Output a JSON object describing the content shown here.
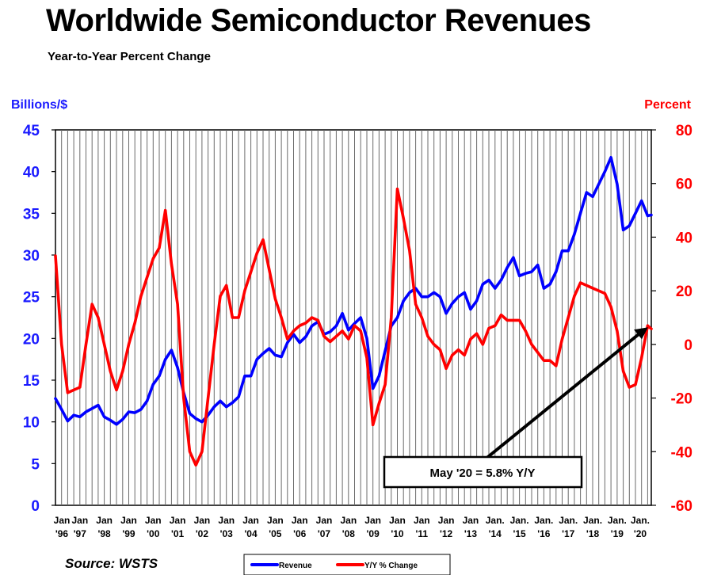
{
  "chart_data": {
    "type": "line",
    "title": "Worldwide Semiconductor Revenues",
    "subtitle": "Year-to-Year Percent Change",
    "y_left_label": "Billions/$",
    "y_right_label": "Percent",
    "source": "Source: WSTS",
    "y_left_range": [
      0,
      45
    ],
    "y_left_ticks": [
      "0",
      "5",
      "10",
      "15",
      "20",
      "25",
      "30",
      "35",
      "40",
      "45"
    ],
    "y_right_range": [
      -60,
      80
    ],
    "y_right_ticks": [
      "-60",
      "-40",
      "-20",
      "0",
      "20",
      "40",
      "60",
      "80"
    ],
    "x_range": [
      1996.0,
      2020.4
    ],
    "x_ticks": [
      {
        "top": "Jan",
        "bottom": "'96",
        "x": 1996
      },
      {
        "top": "Jan",
        "bottom": "'97",
        "x": 1997
      },
      {
        "top": "Jan",
        "bottom": "'98",
        "x": 1998
      },
      {
        "top": "Jan",
        "bottom": "'99",
        "x": 1999
      },
      {
        "top": "Jan",
        "bottom": "'00",
        "x": 2000
      },
      {
        "top": "Jan",
        "bottom": "'01",
        "x": 2001
      },
      {
        "top": "Jan",
        "bottom": "'02",
        "x": 2002
      },
      {
        "top": "Jan",
        "bottom": "'03",
        "x": 2003
      },
      {
        "top": "Jan",
        "bottom": "'04",
        "x": 2004
      },
      {
        "top": "Jan",
        "bottom": "'05",
        "x": 2005
      },
      {
        "top": "Jan",
        "bottom": "'06",
        "x": 2006
      },
      {
        "top": "Jan",
        "bottom": "'07",
        "x": 2007
      },
      {
        "top": "Jan",
        "bottom": "'08",
        "x": 2008
      },
      {
        "top": "Jan",
        "bottom": "'09",
        "x": 2009
      },
      {
        "top": "Jan",
        "bottom": "'10",
        "x": 2010
      },
      {
        "top": "Jan",
        "bottom": "'11",
        "x": 2011
      },
      {
        "top": "Jan",
        "bottom": "'12",
        "x": 2012
      },
      {
        "top": "Jan",
        "bottom": "'13",
        "x": 2013
      },
      {
        "top": "Jan.",
        "bottom": "'14",
        "x": 2014
      },
      {
        "top": "Jan.",
        "bottom": "'15",
        "x": 2015
      },
      {
        "top": "Jan.",
        "bottom": "'16",
        "x": 2016
      },
      {
        "top": "Jan.",
        "bottom": "'17",
        "x": 2017
      },
      {
        "top": "Jan.",
        "bottom": "'18",
        "x": 2018
      },
      {
        "top": "Jan.",
        "bottom": "'19",
        "x": 2019
      },
      {
        "top": "Jan.",
        "bottom": "'20",
        "x": 2020
      }
    ],
    "grid": "vertical",
    "series": [
      {
        "name": "Revenue",
        "axis": "left",
        "color": "#0000ff",
        "points": [
          [
            1996.0,
            12.8
          ],
          [
            1996.25,
            11.5
          ],
          [
            1996.5,
            10.1
          ],
          [
            1996.75,
            10.8
          ],
          [
            1997.0,
            10.6
          ],
          [
            1997.25,
            11.2
          ],
          [
            1997.5,
            11.6
          ],
          [
            1997.75,
            12.0
          ],
          [
            1998.0,
            10.6
          ],
          [
            1998.25,
            10.2
          ],
          [
            1998.5,
            9.7
          ],
          [
            1998.75,
            10.3
          ],
          [
            1999.0,
            11.2
          ],
          [
            1999.25,
            11.1
          ],
          [
            1999.5,
            11.5
          ],
          [
            1999.75,
            12.5
          ],
          [
            2000.0,
            14.5
          ],
          [
            2000.25,
            15.5
          ],
          [
            2000.5,
            17.5
          ],
          [
            2000.75,
            18.6
          ],
          [
            2001.0,
            16.5
          ],
          [
            2001.25,
            13.5
          ],
          [
            2001.5,
            11.0
          ],
          [
            2001.75,
            10.4
          ],
          [
            2002.0,
            10.0
          ],
          [
            2002.25,
            10.8
          ],
          [
            2002.5,
            11.8
          ],
          [
            2002.75,
            12.5
          ],
          [
            2003.0,
            11.8
          ],
          [
            2003.25,
            12.3
          ],
          [
            2003.5,
            13.0
          ],
          [
            2003.75,
            15.5
          ],
          [
            2004.0,
            15.5
          ],
          [
            2004.25,
            17.5
          ],
          [
            2004.5,
            18.2
          ],
          [
            2004.75,
            18.8
          ],
          [
            2005.0,
            18.0
          ],
          [
            2005.25,
            17.8
          ],
          [
            2005.5,
            19.5
          ],
          [
            2005.75,
            20.5
          ],
          [
            2006.0,
            19.5
          ],
          [
            2006.25,
            20.2
          ],
          [
            2006.5,
            21.5
          ],
          [
            2006.75,
            22.0
          ],
          [
            2007.0,
            20.5
          ],
          [
            2007.25,
            20.8
          ],
          [
            2007.5,
            21.5
          ],
          [
            2007.75,
            23.0
          ],
          [
            2008.0,
            21.0
          ],
          [
            2008.25,
            21.8
          ],
          [
            2008.5,
            22.5
          ],
          [
            2008.75,
            20.0
          ],
          [
            2009.0,
            14.0
          ],
          [
            2009.25,
            15.5
          ],
          [
            2009.5,
            18.5
          ],
          [
            2009.75,
            21.5
          ],
          [
            2010.0,
            22.5
          ],
          [
            2010.25,
            24.5
          ],
          [
            2010.5,
            25.5
          ],
          [
            2010.75,
            26.0
          ],
          [
            2011.0,
            25.0
          ],
          [
            2011.25,
            25.0
          ],
          [
            2011.5,
            25.5
          ],
          [
            2011.75,
            25.0
          ],
          [
            2012.0,
            23.0
          ],
          [
            2012.25,
            24.2
          ],
          [
            2012.5,
            25.0
          ],
          [
            2012.75,
            25.5
          ],
          [
            2013.0,
            23.5
          ],
          [
            2013.25,
            24.5
          ],
          [
            2013.5,
            26.5
          ],
          [
            2013.75,
            27.0
          ],
          [
            2014.0,
            26.0
          ],
          [
            2014.25,
            27.0
          ],
          [
            2014.5,
            28.5
          ],
          [
            2014.75,
            29.7
          ],
          [
            2015.0,
            27.5
          ],
          [
            2015.25,
            27.8
          ],
          [
            2015.5,
            28.0
          ],
          [
            2015.75,
            28.8
          ],
          [
            2016.0,
            26.0
          ],
          [
            2016.25,
            26.5
          ],
          [
            2016.5,
            28.0
          ],
          [
            2016.75,
            30.5
          ],
          [
            2017.0,
            30.5
          ],
          [
            2017.25,
            32.5
          ],
          [
            2017.5,
            35.0
          ],
          [
            2017.75,
            37.5
          ],
          [
            2018.0,
            37.0
          ],
          [
            2018.25,
            38.5
          ],
          [
            2018.5,
            40.0
          ],
          [
            2018.75,
            41.7
          ],
          [
            2019.0,
            38.5
          ],
          [
            2019.25,
            33.0
          ],
          [
            2019.5,
            33.5
          ],
          [
            2019.75,
            35.0
          ],
          [
            2020.0,
            36.5
          ],
          [
            2020.25,
            34.7
          ],
          [
            2020.4,
            34.8
          ]
        ]
      },
      {
        "name": "Y/Y % Change",
        "axis": "right",
        "color": "#ff0000",
        "points": [
          [
            1996.0,
            33.0
          ],
          [
            1996.25,
            0.0
          ],
          [
            1996.5,
            -18.0
          ],
          [
            1996.75,
            -17.0
          ],
          [
            1997.0,
            -16.0
          ],
          [
            1997.25,
            0.0
          ],
          [
            1997.5,
            15.0
          ],
          [
            1997.75,
            10.0
          ],
          [
            1998.0,
            0.0
          ],
          [
            1998.25,
            -10.0
          ],
          [
            1998.5,
            -17.0
          ],
          [
            1998.75,
            -10.0
          ],
          [
            1999.0,
            0.0
          ],
          [
            1999.25,
            8.0
          ],
          [
            1999.5,
            18.0
          ],
          [
            1999.75,
            25.0
          ],
          [
            2000.0,
            32.0
          ],
          [
            2000.25,
            36.0
          ],
          [
            2000.5,
            50.0
          ],
          [
            2000.75,
            30.0
          ],
          [
            2001.0,
            15.0
          ],
          [
            2001.25,
            -20.0
          ],
          [
            2001.5,
            -40.0
          ],
          [
            2001.75,
            -45.0
          ],
          [
            2002.0,
            -40.0
          ],
          [
            2002.25,
            -20.0
          ],
          [
            2002.5,
            0.0
          ],
          [
            2002.75,
            18.0
          ],
          [
            2003.0,
            22.0
          ],
          [
            2003.25,
            10.0
          ],
          [
            2003.5,
            10.0
          ],
          [
            2003.75,
            20.0
          ],
          [
            2004.0,
            27.0
          ],
          [
            2004.25,
            34.0
          ],
          [
            2004.5,
            39.0
          ],
          [
            2004.75,
            28.0
          ],
          [
            2005.0,
            17.0
          ],
          [
            2005.25,
            10.0
          ],
          [
            2005.5,
            2.0
          ],
          [
            2005.75,
            5.0
          ],
          [
            2006.0,
            7.0
          ],
          [
            2006.25,
            8.0
          ],
          [
            2006.5,
            10.0
          ],
          [
            2006.75,
            9.0
          ],
          [
            2007.0,
            3.0
          ],
          [
            2007.25,
            1.0
          ],
          [
            2007.5,
            3.0
          ],
          [
            2007.75,
            5.0
          ],
          [
            2008.0,
            2.0
          ],
          [
            2008.25,
            7.0
          ],
          [
            2008.5,
            5.0
          ],
          [
            2008.75,
            -5.0
          ],
          [
            2009.0,
            -30.0
          ],
          [
            2009.25,
            -22.0
          ],
          [
            2009.5,
            -15.0
          ],
          [
            2009.75,
            10.0
          ],
          [
            2010.0,
            58.0
          ],
          [
            2010.25,
            47.0
          ],
          [
            2010.5,
            35.0
          ],
          [
            2010.75,
            15.0
          ],
          [
            2011.0,
            10.0
          ],
          [
            2011.25,
            3.0
          ],
          [
            2011.5,
            0.0
          ],
          [
            2011.75,
            -2.0
          ],
          [
            2012.0,
            -9.0
          ],
          [
            2012.25,
            -4.0
          ],
          [
            2012.5,
            -2.0
          ],
          [
            2012.75,
            -4.0
          ],
          [
            2013.0,
            2.0
          ],
          [
            2013.25,
            4.0
          ],
          [
            2013.5,
            0.0
          ],
          [
            2013.75,
            6.0
          ],
          [
            2014.0,
            7.0
          ],
          [
            2014.25,
            11.0
          ],
          [
            2014.5,
            9.0
          ],
          [
            2014.75,
            9.0
          ],
          [
            2015.0,
            9.0
          ],
          [
            2015.25,
            5.0
          ],
          [
            2015.5,
            0.0
          ],
          [
            2015.75,
            -3.0
          ],
          [
            2016.0,
            -6.0
          ],
          [
            2016.25,
            -6.0
          ],
          [
            2016.5,
            -8.0
          ],
          [
            2016.75,
            2.0
          ],
          [
            2017.0,
            10.0
          ],
          [
            2017.25,
            18.0
          ],
          [
            2017.5,
            23.0
          ],
          [
            2017.75,
            22.0
          ],
          [
            2018.0,
            21.0
          ],
          [
            2018.25,
            20.0
          ],
          [
            2018.5,
            19.0
          ],
          [
            2018.75,
            14.0
          ],
          [
            2019.0,
            5.0
          ],
          [
            2019.25,
            -10.0
          ],
          [
            2019.5,
            -16.0
          ],
          [
            2019.75,
            -15.0
          ],
          [
            2020.0,
            -5.0
          ],
          [
            2020.25,
            7.0
          ],
          [
            2020.4,
            5.8
          ]
        ]
      }
    ],
    "legend": {
      "position": "bottom",
      "items": [
        {
          "label": "Revenue",
          "color": "#0000ff"
        },
        {
          "label": "Y/Y % Change",
          "color": "#ff0000"
        }
      ]
    },
    "annotation": {
      "text": "May '20 = 5.8% Y/Y",
      "target": {
        "x": 2020.4,
        "y_right": 5.8
      }
    }
  }
}
